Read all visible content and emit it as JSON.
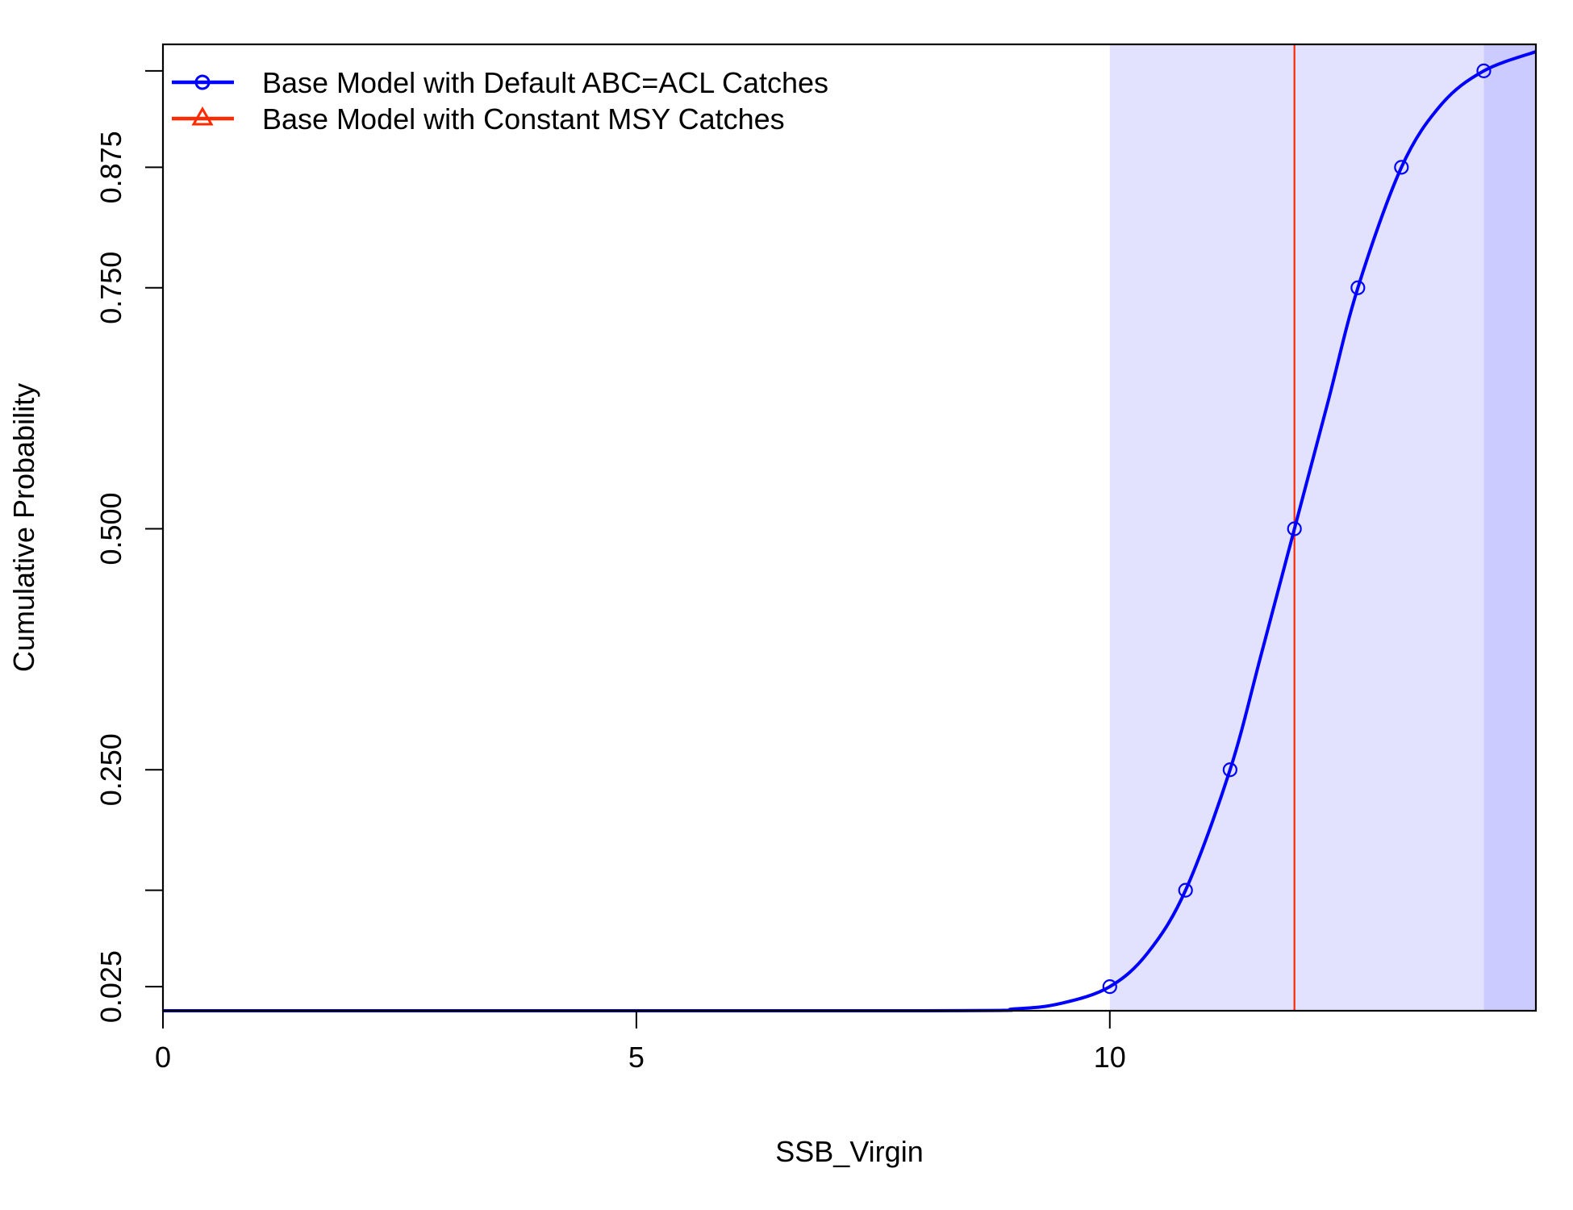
{
  "chart_data": {
    "type": "line",
    "title": "",
    "xlabel": "SSB_Virgin",
    "ylabel": "Cumulative Probability",
    "xlim": [
      0,
      14.5
    ],
    "ylim": [
      0,
      1
    ],
    "x_ticks": [
      0,
      5,
      10
    ],
    "x_tick_labels": [
      "0",
      "5",
      "10"
    ],
    "y_ticks": [
      0.025,
      0.125,
      0.25,
      0.5,
      0.75,
      0.875,
      0.975
    ],
    "y_tick_labels": [
      "0.025",
      "",
      "0.250",
      "0.500",
      "0.750",
      "0.875",
      ""
    ],
    "grid": false,
    "legend_position": "top-left",
    "series": [
      {
        "name": "Base Model with Default ABC=ACL Catches",
        "color": "#0000ff",
        "marker": "circle",
        "quantile_points": {
          "x": [
            10.0,
            10.8,
            11.27,
            11.95,
            12.62,
            13.08,
            13.95
          ],
          "y": [
            0.025,
            0.125,
            0.25,
            0.5,
            0.75,
            0.875,
            0.975
          ]
        },
        "curve": {
          "x": [
            0,
            8.0,
            9.0,
            9.5,
            10.0,
            10.4,
            10.8,
            11.27,
            11.6,
            11.95,
            12.3,
            12.62,
            13.08,
            13.5,
            13.95,
            14.5
          ],
          "y": [
            0,
            0.0,
            0.002,
            0.008,
            0.025,
            0.06,
            0.125,
            0.25,
            0.37,
            0.5,
            0.63,
            0.75,
            0.875,
            0.94,
            0.975,
            0.995
          ]
        },
        "shade_light_x": [
          10.0,
          13.95
        ],
        "shade_dark_x": [
          13.95,
          14.5
        ]
      },
      {
        "name": "Base Model with Constant MSY Catches",
        "color": "#ff2a00",
        "marker": "triangle",
        "vline_x": 11.95
      }
    ]
  }
}
